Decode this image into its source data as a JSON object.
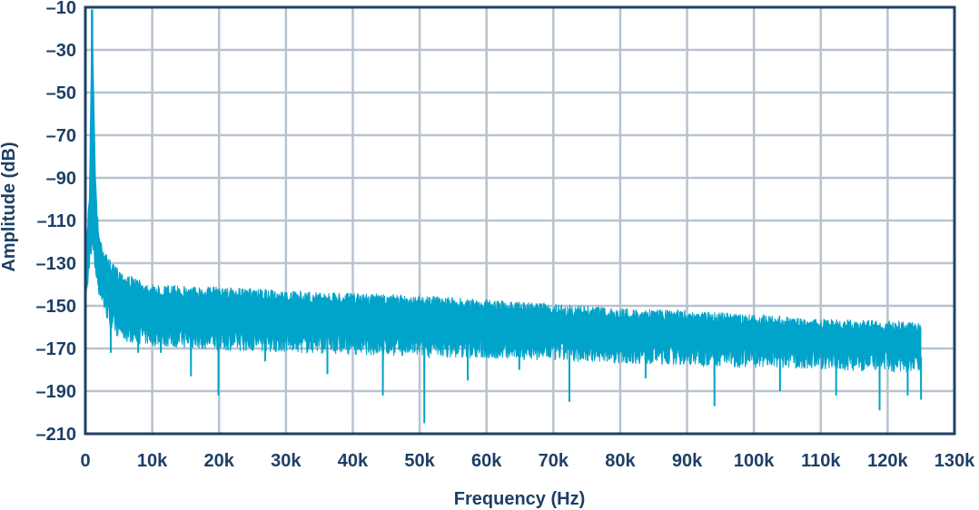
{
  "chart_data": {
    "type": "area",
    "title": "",
    "xlabel": "Frequency (Hz)",
    "ylabel": "Amplitude (dB)",
    "xlim": [
      0,
      130000
    ],
    "ylim": [
      -210,
      -10
    ],
    "x_ticks": [
      0,
      10000,
      20000,
      30000,
      40000,
      50000,
      60000,
      70000,
      80000,
      90000,
      100000,
      110000,
      120000,
      130000
    ],
    "x_tick_labels": [
      "0",
      "10k",
      "20k",
      "30k",
      "40k",
      "50k",
      "60k",
      "70k",
      "80k",
      "90k",
      "100k",
      "110k",
      "120k",
      "130k"
    ],
    "y_ticks": [
      -10,
      -30,
      -50,
      -70,
      -90,
      -110,
      -130,
      -150,
      -170,
      -190,
      -210
    ],
    "y_tick_labels": [
      "–10",
      "–30",
      "–50",
      "–70",
      "–90",
      "–110",
      "–130",
      "–150",
      "–170",
      "–190",
      "–210"
    ],
    "grid": true,
    "series": [
      {
        "color": "#00a3c9",
        "fundamental": {
          "x": 1000,
          "y": -11
        },
        "upper_envelope": {
          "x": [
            0,
            300,
            600,
            1000,
            1500,
            2000,
            3000,
            4000,
            6000,
            10000,
            20000,
            30000,
            40000,
            50000,
            60000,
            70000,
            80000,
            90000,
            100000,
            110000,
            120000,
            125000
          ],
          "y": [
            -130,
            -110,
            -100,
            -11,
            -90,
            -115,
            -125,
            -130,
            -135,
            -140,
            -141,
            -143,
            -144,
            -145,
            -147,
            -149,
            -151,
            -152,
            -154,
            -156,
            -157,
            -158
          ]
        },
        "lower_envelope": {
          "x": [
            0,
            300,
            600,
            1000,
            1500,
            2000,
            3000,
            4000,
            6000,
            10000,
            20000,
            30000,
            40000,
            50000,
            60000,
            70000,
            80000,
            90000,
            100000,
            110000,
            120000,
            125000
          ],
          "y": [
            -150,
            -140,
            -128,
            -120,
            -132,
            -140,
            -150,
            -158,
            -162,
            -164,
            -166,
            -167,
            -168,
            -169,
            -170,
            -171,
            -172,
            -173,
            -174,
            -175,
            -176,
            -176
          ]
        },
        "dips": [
          {
            "x": 3800,
            "y": -172
          },
          {
            "x": 7900,
            "y": -172
          },
          {
            "x": 11300,
            "y": -172
          },
          {
            "x": 15800,
            "y": -183
          },
          {
            "x": 19900,
            "y": -192
          },
          {
            "x": 26900,
            "y": -176
          },
          {
            "x": 36200,
            "y": -182
          },
          {
            "x": 44500,
            "y": -192
          },
          {
            "x": 50700,
            "y": -205
          },
          {
            "x": 57200,
            "y": -185
          },
          {
            "x": 64900,
            "y": -180
          },
          {
            "x": 72400,
            "y": -195
          },
          {
            "x": 83800,
            "y": -184
          },
          {
            "x": 94100,
            "y": -197
          },
          {
            "x": 103900,
            "y": -190
          },
          {
            "x": 112300,
            "y": -192
          },
          {
            "x": 118800,
            "y": -199
          },
          {
            "x": 123000,
            "y": -192
          },
          {
            "x": 125000,
            "y": -194
          }
        ]
      }
    ]
  }
}
